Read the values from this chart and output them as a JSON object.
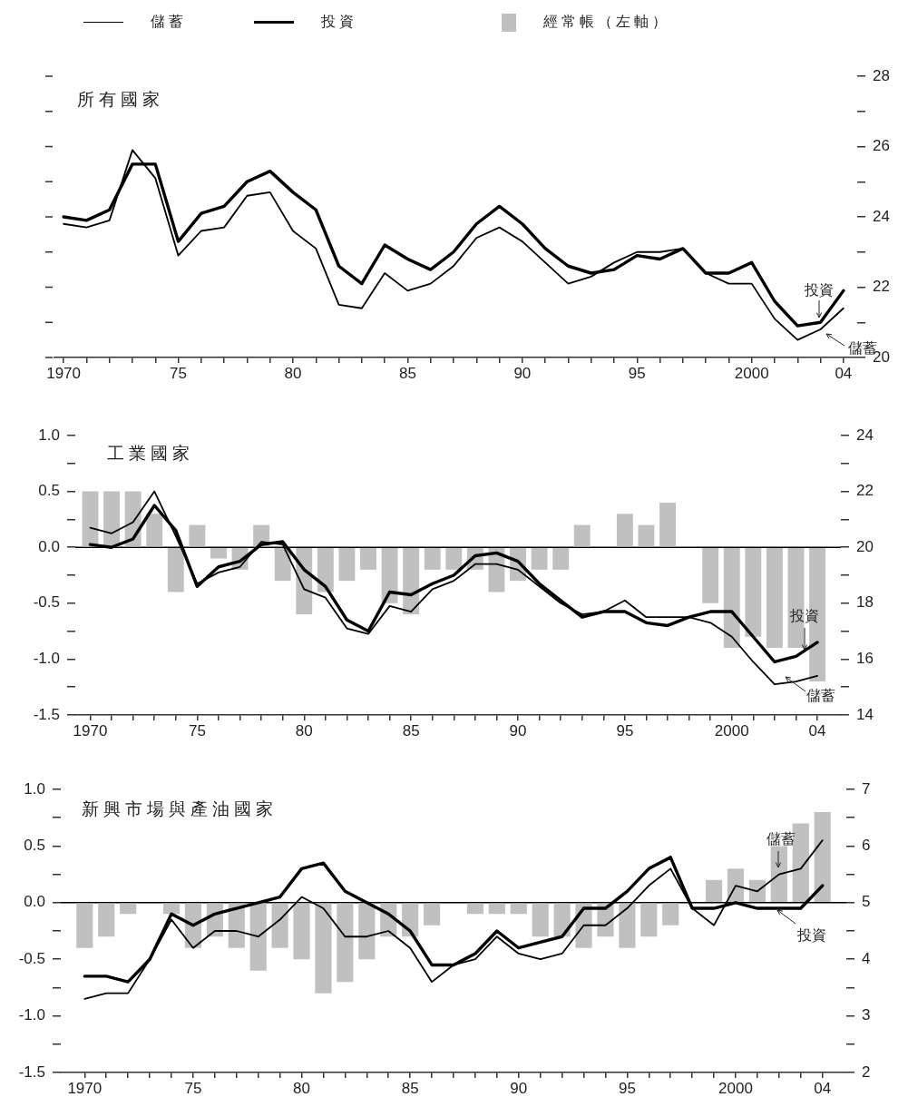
{
  "chart_data": [
    {
      "type": "line",
      "title": "所有國家",
      "legend": "top",
      "x": [
        1970,
        1971,
        1972,
        1973,
        1974,
        1975,
        1976,
        1977,
        1978,
        1979,
        1980,
        1981,
        1982,
        1983,
        1984,
        1985,
        1986,
        1987,
        1988,
        1989,
        1990,
        1991,
        1992,
        1993,
        1994,
        1995,
        1996,
        1997,
        1998,
        1999,
        2000,
        2001,
        2002,
        2003,
        2004
      ],
      "xlim": [
        1969.6,
        2004.6
      ],
      "xticks": [
        {
          "value": 1970,
          "label": "1970"
        },
        {
          "value": 1971,
          "label": null
        },
        {
          "value": 1972,
          "label": null
        },
        {
          "value": 1973,
          "label": null
        },
        {
          "value": 1974,
          "label": null
        },
        {
          "value": 1975,
          "label": "75"
        },
        {
          "value": 1976,
          "label": null
        },
        {
          "value": 1977,
          "label": null
        },
        {
          "value": 1978,
          "label": null
        },
        {
          "value": 1979,
          "label": null
        },
        {
          "value": 1980,
          "label": "80"
        },
        {
          "value": 1981,
          "label": null
        },
        {
          "value": 1982,
          "label": null
        },
        {
          "value": 1983,
          "label": null
        },
        {
          "value": 1984,
          "label": null
        },
        {
          "value": 1985,
          "label": "85"
        },
        {
          "value": 1986,
          "label": null
        },
        {
          "value": 1987,
          "label": null
        },
        {
          "value": 1988,
          "label": null
        },
        {
          "value": 1989,
          "label": null
        },
        {
          "value": 1990,
          "label": "90"
        },
        {
          "value": 1991,
          "label": null
        },
        {
          "value": 1992,
          "label": null
        },
        {
          "value": 1993,
          "label": null
        },
        {
          "value": 1994,
          "label": null
        },
        {
          "value": 1995,
          "label": "95"
        },
        {
          "value": 1996,
          "label": null
        },
        {
          "value": 1997,
          "label": null
        },
        {
          "value": 1998,
          "label": null
        },
        {
          "value": 1999,
          "label": null
        },
        {
          "value": 2000,
          "label": "2000"
        },
        {
          "value": 2001,
          "label": null
        },
        {
          "value": 2002,
          "label": null
        },
        {
          "value": 2003,
          "label": null
        },
        {
          "value": 2004,
          "label": "04"
        }
      ],
      "ylim": [
        20,
        28
      ],
      "yticks": [
        20,
        {
          "value": 21,
          "label": null
        },
        22,
        {
          "value": 23,
          "label": null
        },
        24,
        {
          "value": 25,
          "label": null
        },
        26,
        {
          "value": 27,
          "label": null
        },
        28
      ],
      "series": [
        {
          "name": "儲蓄",
          "color": "#000000",
          "values": [
            23.8,
            23.7,
            23.9,
            25.9,
            25.1,
            22.9,
            23.6,
            23.7,
            24.6,
            24.7,
            23.6,
            23.1,
            21.5,
            21.4,
            22.4,
            21.9,
            22.1,
            22.6,
            23.4,
            23.7,
            23.3,
            22.7,
            22.1,
            22.3,
            22.7,
            23.0,
            23.0,
            23.1,
            22.4,
            22.1,
            22.1,
            21.1,
            20.5,
            20.8,
            21.4
          ]
        },
        {
          "name": "投資",
          "color": "#000000",
          "values": [
            24.0,
            23.9,
            24.2,
            25.5,
            25.5,
            23.3,
            24.1,
            24.3,
            25.0,
            25.3,
            24.7,
            24.2,
            22.6,
            22.1,
            23.2,
            22.8,
            22.5,
            23.0,
            23.8,
            24.3,
            23.8,
            23.1,
            22.6,
            22.4,
            22.5,
            22.9,
            22.8,
            23.1,
            22.4,
            22.4,
            22.7,
            21.6,
            20.9,
            21.0,
            21.9
          ]
        }
      ],
      "annotations": [
        {
          "text": "投資",
          "x": 2003,
          "y": 21.0
        },
        {
          "text": "儲蓄",
          "x": 2003,
          "y": 20.8
        }
      ]
    },
    {
      "type": "bar",
      "title": "工業國家",
      "legend": "top",
      "x": [
        1970,
        1971,
        1972,
        1973,
        1974,
        1975,
        1976,
        1977,
        1978,
        1979,
        1980,
        1981,
        1982,
        1983,
        1984,
        1985,
        1986,
        1987,
        1988,
        1989,
        1990,
        1991,
        1992,
        1993,
        1994,
        1995,
        1996,
        1997,
        1998,
        1999,
        2000,
        2001,
        2002,
        2003,
        2004
      ],
      "xlim": [
        1969.3,
        2005.1
      ],
      "xticks": [
        {
          "value": 1970,
          "label": "1970"
        },
        {
          "value": 1971,
          "label": null
        },
        {
          "value": 1972,
          "label": null
        },
        {
          "value": 1973,
          "label": null
        },
        {
          "value": 1974,
          "label": null
        },
        {
          "value": 1975,
          "label": "75"
        },
        {
          "value": 1976,
          "label": null
        },
        {
          "value": 1977,
          "label": null
        },
        {
          "value": 1978,
          "label": null
        },
        {
          "value": 1979,
          "label": null
        },
        {
          "value": 1980,
          "label": "80"
        },
        {
          "value": 1981,
          "label": null
        },
        {
          "value": 1982,
          "label": null
        },
        {
          "value": 1983,
          "label": null
        },
        {
          "value": 1984,
          "label": null
        },
        {
          "value": 1985,
          "label": "85"
        },
        {
          "value": 1986,
          "label": null
        },
        {
          "value": 1987,
          "label": null
        },
        {
          "value": 1988,
          "label": null
        },
        {
          "value": 1989,
          "label": null
        },
        {
          "value": 1990,
          "label": "90"
        },
        {
          "value": 1991,
          "label": null
        },
        {
          "value": 1992,
          "label": null
        },
        {
          "value": 1993,
          "label": null
        },
        {
          "value": 1994,
          "label": null
        },
        {
          "value": 1995,
          "label": "95"
        },
        {
          "value": 1996,
          "label": null
        },
        {
          "value": 1997,
          "label": null
        },
        {
          "value": 1998,
          "label": null
        },
        {
          "value": 1999,
          "label": null
        },
        {
          "value": 2000,
          "label": "2000"
        },
        {
          "value": 2001,
          "label": null
        },
        {
          "value": 2002,
          "label": null
        },
        {
          "value": 2003,
          "label": null
        },
        {
          "value": 2004,
          "label": "04"
        }
      ],
      "ylim": [
        -1.5,
        1.0
      ],
      "yticks": [
        {
          "value": -1.5,
          "label": "-1.5"
        },
        {
          "value": -1.25,
          "label": null
        },
        {
          "value": -1.0,
          "label": "-1.0"
        },
        {
          "value": -0.75,
          "label": null
        },
        {
          "value": -0.5,
          "label": "-0.5"
        },
        {
          "value": -0.25,
          "label": null
        },
        {
          "value": 0,
          "label": "0.0"
        },
        {
          "value": 0.25,
          "label": null
        },
        {
          "value": 0.5,
          "label": "0.5"
        },
        {
          "value": 0.75,
          "label": null
        },
        {
          "value": 1.0,
          "label": "1.0"
        }
      ],
      "y2lim": [
        14,
        24
      ],
      "y2ticks": [
        14,
        {
          "value": 15,
          "label": null
        },
        16,
        {
          "value": 17,
          "label": null
        },
        18,
        {
          "value": 19,
          "label": null
        },
        20,
        {
          "value": 21,
          "label": null
        },
        22,
        {
          "value": 23,
          "label": null
        },
        24
      ],
      "ref_lines": [
        {
          "axis": "y",
          "value": 0,
          "color": "#000000"
        }
      ],
      "series": [
        {
          "name": "經常帳（左軸）",
          "color": "#c0c0c0",
          "values": [
            0.5,
            0.5,
            0.5,
            0.3,
            -0.4,
            0.2,
            -0.1,
            -0.2,
            0.2,
            -0.3,
            -0.6,
            -0.4,
            -0.3,
            -0.2,
            -0.5,
            -0.6,
            -0.2,
            -0.2,
            -0.2,
            -0.4,
            -0.3,
            -0.2,
            -0.2,
            0.2,
            null,
            0.3,
            0.2,
            0.4,
            null,
            -0.5,
            -0.9,
            -0.8,
            -0.9,
            -0.9,
            -1.2
          ]
        },
        {
          "type": "line",
          "axis": "y2",
          "color": "#000000",
          "values": [
            20.7,
            20.5,
            20.9,
            22.0,
            20.4,
            18.7,
            19.1,
            19.3,
            20.2,
            20.1,
            18.5,
            18.2,
            17.1,
            16.9,
            17.9,
            17.7,
            18.5,
            18.8,
            19.4,
            19.4,
            19.2,
            18.6,
            18.0,
            17.6,
            17.7,
            18.1,
            17.5,
            17.5,
            17.5,
            17.3,
            16.8,
            15.9,
            15.1,
            15.2,
            15.4
          ]
        },
        {
          "type": "line",
          "axis": "y2",
          "color": "#000000",
          "values": [
            20.1,
            20.0,
            20.3,
            21.5,
            20.6,
            18.6,
            19.3,
            19.5,
            20.1,
            20.2,
            19.2,
            18.6,
            17.4,
            17.0,
            18.4,
            18.3,
            18.7,
            19.0,
            19.7,
            19.8,
            19.5,
            18.7,
            18.1,
            17.5,
            17.7,
            17.7,
            17.3,
            17.2,
            17.5,
            17.7,
            17.7,
            16.8,
            15.9,
            16.1,
            16.6
          ]
        }
      ],
      "annotations": [
        "投資",
        "儲蓄"
      ]
    },
    {
      "type": "bar",
      "title": "新興市場與產油國家",
      "x": [
        1970,
        1971,
        1972,
        1973,
        1974,
        1975,
        1976,
        1977,
        1978,
        1979,
        1980,
        1981,
        1982,
        1983,
        1984,
        1985,
        1986,
        1987,
        1988,
        1989,
        1990,
        1991,
        1992,
        1993,
        1994,
        1995,
        1996,
        1997,
        1998,
        1999,
        2000,
        2001,
        2002,
        2003,
        2004
      ],
      "xlim": [
        1968.9,
        2005.1
      ],
      "xticks": [
        {
          "value": 1970,
          "label": "1970"
        },
        {
          "value": 1971,
          "label": null
        },
        {
          "value": 1972,
          "label": null
        },
        {
          "value": 1973,
          "label": null
        },
        {
          "value": 1974,
          "label": null
        },
        {
          "value": 1975,
          "label": "75"
        },
        {
          "value": 1976,
          "label": null
        },
        {
          "value": 1977,
          "label": null
        },
        {
          "value": 1978,
          "label": null
        },
        {
          "value": 1979,
          "label": null
        },
        {
          "value": 1980,
          "label": "80"
        },
        {
          "value": 1981,
          "label": null
        },
        {
          "value": 1982,
          "label": null
        },
        {
          "value": 1983,
          "label": null
        },
        {
          "value": 1984,
          "label": null
        },
        {
          "value": 1985,
          "label": "85"
        },
        {
          "value": 1986,
          "label": null
        },
        {
          "value": 1987,
          "label": null
        },
        {
          "value": 1988,
          "label": null
        },
        {
          "value": 1989,
          "label": null
        },
        {
          "value": 1990,
          "label": "90"
        },
        {
          "value": 1991,
          "label": null
        },
        {
          "value": 1992,
          "label": null
        },
        {
          "value": 1993,
          "label": null
        },
        {
          "value": 1994,
          "label": null
        },
        {
          "value": 1995,
          "label": "95"
        },
        {
          "value": 1996,
          "label": null
        },
        {
          "value": 1997,
          "label": null
        },
        {
          "value": 1998,
          "label": null
        },
        {
          "value": 1999,
          "label": null
        },
        {
          "value": 2000,
          "label": "2000"
        },
        {
          "value": 2001,
          "label": null
        },
        {
          "value": 2002,
          "label": null
        },
        {
          "value": 2003,
          "label": null
        },
        {
          "value": 2004,
          "label": "04"
        }
      ],
      "ylim": [
        -1.5,
        1.0
      ],
      "yticks": [
        {
          "value": -1.5,
          "label": "-1.5"
        },
        {
          "value": -1.25,
          "label": null
        },
        {
          "value": -1.0,
          "label": "-1.0"
        },
        {
          "value": -0.75,
          "label": null
        },
        {
          "value": -0.5,
          "label": "-0.5"
        },
        {
          "value": -0.25,
          "label": null
        },
        {
          "value": 0,
          "label": "0.0"
        },
        {
          "value": 0.25,
          "label": null
        },
        {
          "value": 0.5,
          "label": "0.5"
        },
        {
          "value": 0.75,
          "label": null
        },
        {
          "value": 1.0,
          "label": "1.0"
        }
      ],
      "y2lim": [
        2,
        7
      ],
      "y2ticks": [
        2,
        {
          "value": 2.5,
          "label": null
        },
        3,
        {
          "value": 3.5,
          "label": null
        },
        4,
        {
          "value": 4.5,
          "label": null
        },
        5,
        {
          "value": 5.5,
          "label": null
        },
        6,
        {
          "value": 6.5,
          "label": null
        },
        7
      ],
      "ref_lines": [
        {
          "axis": "y",
          "value": 0,
          "color": "#000000"
        }
      ],
      "series": [
        {
          "color": "#c0c0c0",
          "values": [
            -0.4,
            -0.3,
            -0.1,
            null,
            -0.1,
            -0.4,
            -0.3,
            -0.4,
            -0.6,
            -0.4,
            -0.5,
            -0.8,
            -0.7,
            -0.5,
            -0.3,
            -0.3,
            -0.2,
            null,
            -0.1,
            -0.1,
            -0.1,
            -0.3,
            -0.3,
            -0.4,
            -0.3,
            -0.4,
            -0.3,
            -0.2,
            null,
            0.2,
            0.3,
            0.2,
            0.5,
            0.7,
            0.8
          ]
        },
        {
          "type": "line",
          "axis": "y2",
          "color": "#000000",
          "values": [
            3.3,
            3.4,
            3.4,
            4.0,
            4.7,
            4.2,
            4.5,
            4.5,
            4.4,
            4.7,
            5.1,
            4.9,
            4.4,
            4.4,
            4.5,
            4.2,
            3.6,
            3.9,
            4.0,
            4.4,
            4.1,
            4.0,
            4.1,
            4.6,
            4.6,
            4.9,
            5.3,
            5.6,
            4.9,
            4.6,
            5.3,
            5.2,
            5.5,
            5.6,
            6.1
          ]
        },
        {
          "type": "line",
          "axis": "y2",
          "color": "#000000",
          "values": [
            3.7,
            3.7,
            3.6,
            4.0,
            4.8,
            4.6,
            4.8,
            4.9,
            5.0,
            5.1,
            5.6,
            5.7,
            5.2,
            5.0,
            4.8,
            4.5,
            3.9,
            3.9,
            4.1,
            4.5,
            4.2,
            4.3,
            4.4,
            4.9,
            4.9,
            5.2,
            5.6,
            5.8,
            4.9,
            4.9,
            5.0,
            4.9,
            4.9,
            4.9,
            5.3
          ]
        }
      ],
      "annotations": [
        "儲蓄",
        "投資"
      ]
    }
  ]
}
